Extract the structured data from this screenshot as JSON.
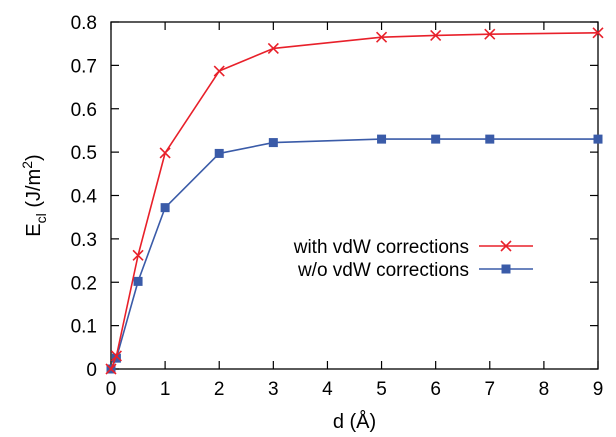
{
  "chart_data": {
    "type": "line",
    "title": "",
    "xlabel": "d (Å)",
    "ylabel": {
      "main": "E",
      "subscript": "cl",
      "units_prefix": " (J/m",
      "units_superscript": "2",
      "units_suffix": ")"
    },
    "xlim": [
      0,
      9
    ],
    "ylim": [
      0,
      0.8
    ],
    "xticks": [
      0,
      1,
      2,
      3,
      4,
      5,
      6,
      7,
      8,
      9
    ],
    "yticks": [
      0,
      0.1,
      0.2,
      0.3,
      0.4,
      0.5,
      0.6,
      0.7,
      0.8
    ],
    "ytick_labels": [
      "0",
      "0.1",
      "0.2",
      "0.3",
      "0.4",
      "0.5",
      "0.6",
      "0.7",
      "0.8"
    ],
    "grid": false,
    "legend_position": "center-right",
    "series": [
      {
        "name": "with vdW corrections",
        "color": "#e8202a",
        "marker": "x",
        "x": [
          0,
          0.1,
          0.5,
          1,
          2,
          3,
          5,
          6,
          7,
          9
        ],
        "y": [
          0,
          0.03,
          0.262,
          0.498,
          0.687,
          0.739,
          0.765,
          0.769,
          0.772,
          0.775
        ]
      },
      {
        "name": "w/o vdW corrections",
        "color": "#3a5ba8",
        "marker": "square",
        "x": [
          0,
          0.1,
          0.5,
          1,
          2,
          3,
          5,
          6,
          7,
          9
        ],
        "y": [
          0,
          0.025,
          0.202,
          0.372,
          0.497,
          0.522,
          0.53,
          0.53,
          0.53,
          0.53
        ]
      }
    ]
  }
}
